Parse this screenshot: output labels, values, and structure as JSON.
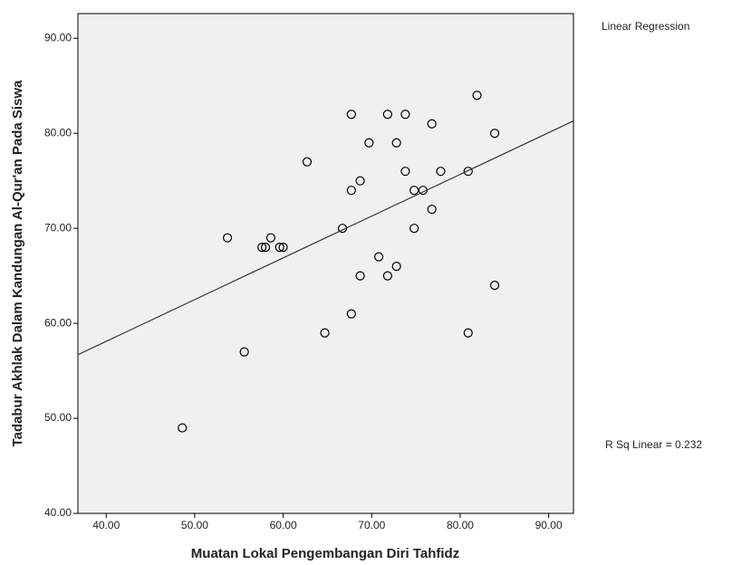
{
  "chart_data": {
    "type": "scatter",
    "xlabel": "Muatan Lokal Pengembangan Diri Tahfidz",
    "ylabel": "Tadabur Akhlak Dalam Kandungan Al-Qur'an Pada Siswa",
    "xlim": [
      36.8,
      92.8
    ],
    "ylim": [
      40,
      92.6
    ],
    "xticks": [
      {
        "value": 40,
        "label": "40.00"
      },
      {
        "value": 50,
        "label": "50.00"
      },
      {
        "value": 60,
        "label": "60.00"
      },
      {
        "value": 70,
        "label": "70.00"
      },
      {
        "value": 80,
        "label": "80.00"
      },
      {
        "value": 90,
        "label": "90.00"
      }
    ],
    "yticks": [
      {
        "value": 40,
        "label": "40.00"
      },
      {
        "value": 50,
        "label": "50.00"
      },
      {
        "value": 60,
        "label": "60.00"
      },
      {
        "value": 70,
        "label": "70.00"
      },
      {
        "value": 80,
        "label": "80.00"
      },
      {
        "value": 90,
        "label": "90.00"
      }
    ],
    "series": [
      {
        "color": "#000000",
        "x": [
          48.6,
          53.7,
          55.6,
          57.6,
          58.0,
          58.6,
          59.6,
          60.0,
          62.7,
          64.7,
          66.7,
          67.7,
          67.7,
          67.7,
          68.7,
          68.7,
          69.7,
          70.8,
          71.8,
          71.8,
          72.8,
          72.8,
          73.8,
          73.8,
          74.8,
          74.8,
          75.8,
          76.8,
          76.8,
          77.8,
          80.9,
          80.9,
          81.9,
          83.9,
          83.9
        ],
        "values": [
          49,
          69,
          57,
          68,
          68,
          69,
          68,
          68,
          77,
          59,
          70,
          82,
          74,
          61,
          75,
          65,
          79,
          67,
          82,
          65,
          79,
          66,
          82,
          76,
          74,
          70,
          74,
          81,
          72,
          76,
          76,
          59,
          84,
          80,
          64
        ]
      },
      {
        "name": "Linear Regression",
        "type": "line",
        "color": "#333333",
        "x": [
          36.8,
          92.8
        ],
        "values": [
          56.7,
          81.3
        ]
      }
    ],
    "annotation": "R Sq Linear = 0.232"
  }
}
